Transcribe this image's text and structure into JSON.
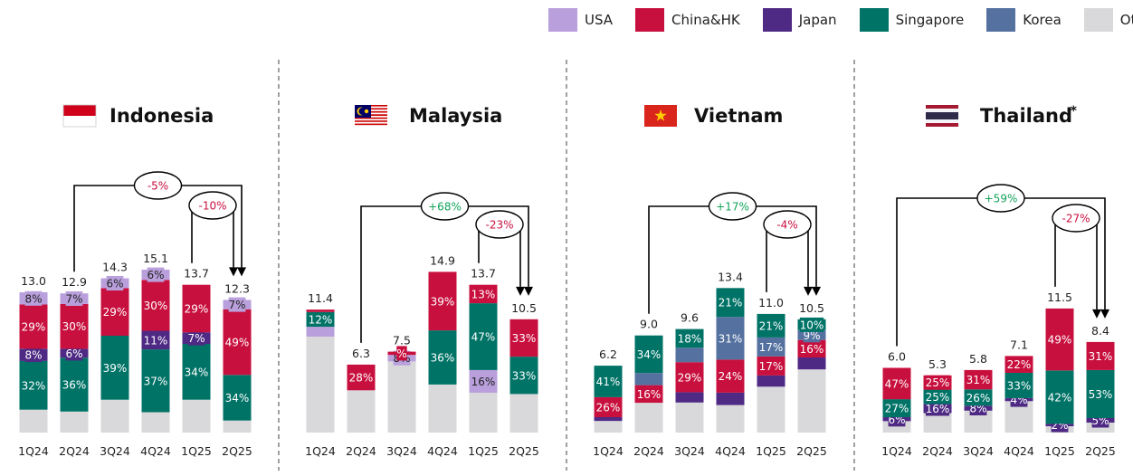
{
  "legend": [
    {
      "name": "USA",
      "color": "#b9a0dc"
    },
    {
      "name": "China&HK",
      "color": "#c8103e"
    },
    {
      "name": "Japan",
      "color": "#4e2a84"
    },
    {
      "name": "Singapore",
      "color": "#007367"
    },
    {
      "name": "Korea",
      "color": "#5471a0"
    },
    {
      "name": "Others",
      "color": "#d9d9db"
    }
  ],
  "chart_data": [
    {
      "type": "bar",
      "title": "Indonesia",
      "flag": "indonesia",
      "title_mark": "",
      "categories": [
        "1Q24",
        "2Q24",
        "3Q24",
        "4Q24",
        "1Q25",
        "2Q25"
      ],
      "totals": [
        "13.0",
        "12.9",
        "14.3",
        "15.1",
        "13.7",
        "12.3"
      ],
      "series": [
        {
          "name": "Others",
          "values": [
            15,
            14,
            20,
            12,
            20,
            9
          ],
          "labels": [
            "",
            "",
            "",
            "",
            "",
            ""
          ]
        },
        {
          "name": "Singapore",
          "values": [
            32,
            36,
            39,
            37,
            34,
            34
          ],
          "labels": [
            "32%",
            "36%",
            "39%",
            "37%",
            "34%",
            "34%"
          ]
        },
        {
          "name": "Korea",
          "values": [
            0,
            0,
            0,
            0,
            0,
            0
          ],
          "labels": [
            "",
            "",
            "",
            "",
            "",
            ""
          ]
        },
        {
          "name": "Japan",
          "values": [
            8,
            6,
            0,
            11,
            7,
            0
          ],
          "labels": [
            "8%",
            "6%",
            "",
            "11%",
            "7%",
            ""
          ]
        },
        {
          "name": "China&HK",
          "values": [
            29,
            30,
            29,
            30,
            29,
            49
          ],
          "labels": [
            "29%",
            "30%",
            "29%",
            "30%",
            "29%",
            "49%"
          ]
        },
        {
          "name": "USA",
          "values": [
            8,
            7,
            6,
            6,
            0,
            7
          ],
          "labels": [
            "8%",
            "7%",
            "6%",
            "6%",
            "",
            "7%"
          ]
        }
      ],
      "annotations": [
        {
          "label": "-5%",
          "sentiment": "negative"
        },
        {
          "label": "-10%",
          "sentiment": "negative"
        }
      ]
    },
    {
      "type": "bar",
      "title": "Malaysia",
      "flag": "malaysia",
      "title_mark": "",
      "categories": [
        "1Q24",
        "2Q24",
        "3Q24",
        "4Q24",
        "1Q25",
        "2Q25"
      ],
      "totals": [
        "11.4",
        "6.3",
        "7.5",
        "14.9",
        "13.7",
        "10.5"
      ],
      "series": [
        {
          "name": "Others",
          "values": [
            78,
            46,
            88,
            32,
            28,
            34
          ],
          "labels": [
            "",
            "",
            "",
            "",
            "",
            ""
          ]
        },
        {
          "name": "USA",
          "values": [
            8,
            0,
            8,
            0,
            16,
            0
          ],
          "labels": [
            "",
            "",
            "8%",
            "",
            "16%",
            ""
          ]
        },
        {
          "name": "Singapore",
          "values": [
            12,
            0,
            0,
            36,
            47,
            33
          ],
          "labels": [
            "12%",
            "",
            "",
            "36%",
            "47%",
            "33%"
          ]
        },
        {
          "name": "China&HK",
          "values": [
            2,
            28,
            4,
            39,
            13,
            33
          ],
          "labels": [
            "",
            "28%",
            "%",
            "39%",
            "13%",
            "33%"
          ]
        }
      ],
      "annotations": [
        {
          "label": "+68%",
          "sentiment": "positive"
        },
        {
          "label": "-23%",
          "sentiment": "negative"
        }
      ]
    },
    {
      "type": "bar",
      "title": "Vietnam",
      "flag": "vietnam",
      "title_mark": "",
      "categories": [
        "1Q24",
        "2Q24",
        "3Q24",
        "4Q24",
        "1Q25",
        "2Q25"
      ],
      "totals": [
        "6.2",
        "9.0",
        "9.6",
        "13.4",
        "11.0",
        "10.5"
      ],
      "series": [
        {
          "name": "Others",
          "values": [
            15,
            27,
            29,
            20,
            41,
            58
          ],
          "labels": [
            "",
            "",
            "",
            "",
            "",
            ""
          ]
        },
        {
          "name": "Japan",
          "values": [
            5,
            0,
            10,
            9,
            10,
            11
          ],
          "labels": [
            "",
            "",
            "",
            "",
            "",
            ""
          ]
        },
        {
          "name": "China&HK",
          "values": [
            26,
            16,
            29,
            24,
            17,
            16
          ],
          "labels": [
            "26%",
            "16%",
            "29%",
            "24%",
            "17%",
            "16%"
          ]
        },
        {
          "name": "Korea",
          "values": [
            0,
            11,
            14,
            31,
            17,
            9
          ],
          "labels": [
            "",
            "",
            "",
            "31%",
            "17%",
            "9%"
          ]
        },
        {
          "name": "Singapore",
          "values": [
            41,
            34,
            18,
            21,
            21,
            10
          ],
          "labels": [
            "41%",
            "34%",
            "18%",
            "21%",
            "21%",
            "10%"
          ]
        }
      ],
      "annotations": [
        {
          "label": "+17%",
          "sentiment": "positive"
        },
        {
          "label": "-4%",
          "sentiment": "negative"
        }
      ]
    },
    {
      "type": "bar",
      "title": "Thailand",
      "flag": "thailand",
      "title_mark": "*",
      "categories": [
        "1Q24",
        "2Q24",
        "3Q24",
        "4Q24",
        "1Q25",
        "2Q25"
      ],
      "totals": [
        "6.0",
        "5.3",
        "5.8",
        "7.1",
        "11.5",
        "8.4"
      ],
      "series": [
        {
          "name": "Others",
          "values": [
            17,
            34,
            35,
            41,
            5,
            11
          ],
          "labels": [
            "",
            "",
            "",
            "",
            "",
            ""
          ]
        },
        {
          "name": "Japan",
          "values": [
            6,
            16,
            8,
            4,
            2,
            5
          ],
          "labels": [
            "6%",
            "16%",
            "8%",
            "4%",
            "2%",
            "5%"
          ]
        },
        {
          "name": "Singapore",
          "values": [
            27,
            25,
            26,
            33,
            42,
            53
          ],
          "labels": [
            "27%",
            "25%",
            "26%",
            "33%",
            "42%",
            "53%"
          ]
        },
        {
          "name": "China&HK",
          "values": [
            47,
            25,
            31,
            22,
            49,
            31
          ],
          "labels": [
            "47%",
            "25%",
            "31%",
            "22%",
            "49%",
            "31%"
          ]
        }
      ],
      "annotations": [
        {
          "label": "+59%",
          "sentiment": "positive"
        },
        {
          "label": "-27%",
          "sentiment": "negative"
        }
      ]
    }
  ]
}
